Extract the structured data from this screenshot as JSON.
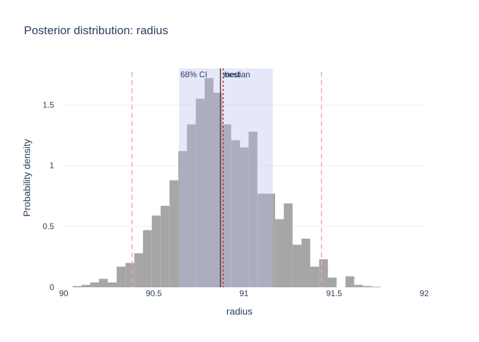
{
  "chart_data": {
    "type": "bar",
    "title": "Posterior distribution: radius",
    "xlabel": "radius",
    "ylabel": "Probability density",
    "xlim": [
      90,
      92
    ],
    "ylim": [
      0,
      1.8
    ],
    "x_ticks": [
      90,
      90.5,
      91,
      91.5,
      92
    ],
    "x_tick_labels": [
      "90",
      "90.5",
      "91",
      "91.5",
      "92"
    ],
    "y_ticks": [
      0,
      0.5,
      1,
      1.5
    ],
    "y_tick_labels": [
      "0",
      "0.5",
      "1",
      "1.5"
    ],
    "grid": true,
    "bin_width": 0.0488,
    "bin_starts": [
      90.05,
      90.099,
      90.148,
      90.196,
      90.245,
      90.294,
      90.343,
      90.392,
      90.44,
      90.489,
      90.538,
      90.587,
      90.636,
      90.684,
      90.733,
      90.782,
      90.831,
      90.88,
      90.929,
      90.977,
      91.026,
      91.075,
      91.124,
      91.173,
      91.221,
      91.27,
      91.319,
      91.368,
      91.417,
      91.465,
      91.514,
      91.563,
      91.612,
      91.661,
      91.709,
      91.758
    ],
    "densities": [
      0.01,
      0.02,
      0.04,
      0.07,
      0.04,
      0.17,
      0.2,
      0.28,
      0.47,
      0.59,
      0.67,
      0.88,
      1.12,
      1.34,
      1.55,
      1.72,
      1.6,
      1.34,
      1.21,
      1.15,
      1.28,
      0.77,
      0.77,
      0.56,
      0.69,
      0.35,
      0.4,
      0.17,
      0.23,
      0.08,
      0.0,
      0.09,
      0.02,
      0.01,
      0.005,
      0.0
    ],
    "ci_68": [
      90.64,
      91.16
    ],
    "median": 90.87,
    "best": 90.885,
    "dashed_bounds": [
      90.38,
      91.43
    ],
    "annotations": [
      "68% CI",
      "median",
      "best"
    ],
    "colors": {
      "bars": "#a6a6a6",
      "ci_band": "#dcdcfa",
      "median_line": "#444444",
      "best_line": "#d62728",
      "bound_lines": "#eeaaaa",
      "text": "#2a3f5f",
      "grid": "#eeeeee"
    }
  }
}
